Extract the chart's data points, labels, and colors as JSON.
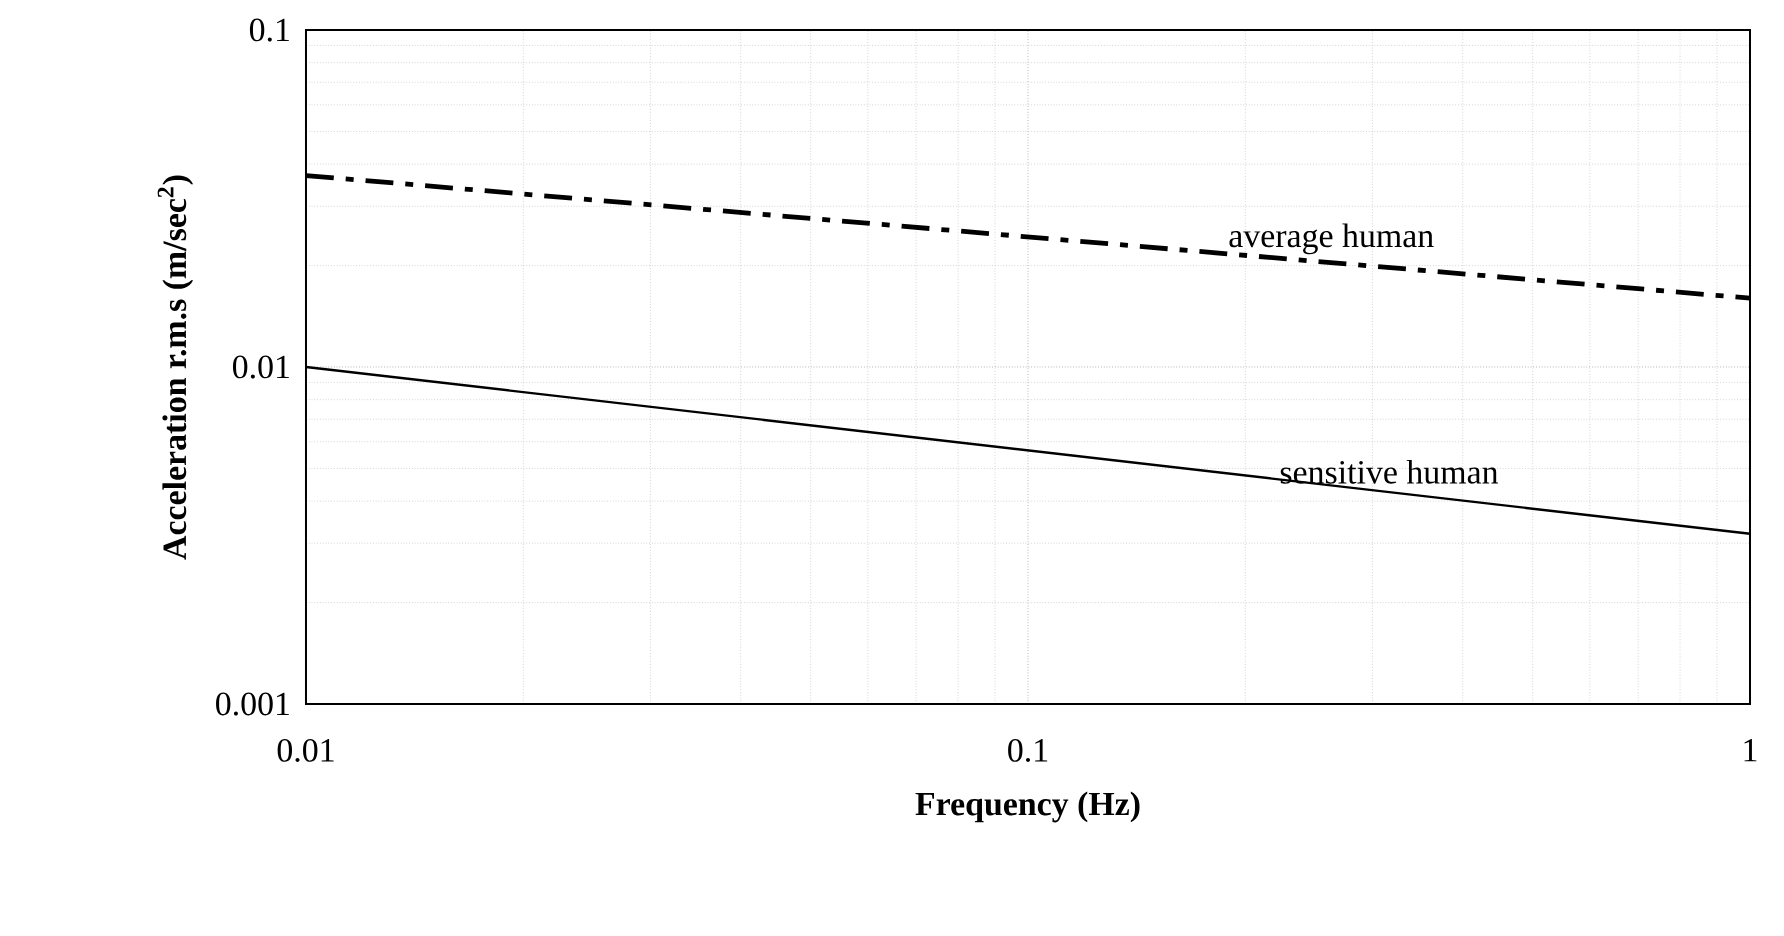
{
  "chart_data": {
    "type": "line",
    "xlabel": "Frequency (Hz)",
    "ylabel": "Acceleration r.m.s (m/sec$^{2}$)",
    "x": [
      0.01,
      1
    ],
    "series": [
      {
        "name": "average human",
        "color": "#000000",
        "line_style": "dashed",
        "values": [
          0.037,
          0.016
        ]
      },
      {
        "name": "sensitive human",
        "color": "#000000",
        "line_style": "solid",
        "values": [
          0.01,
          0.0032
        ]
      }
    ],
    "log": "xy",
    "xlim": [
      0.01,
      1
    ],
    "ylim": [
      0.001,
      0.1
    ],
    "xticks": [
      0.01,
      0.1,
      1
    ],
    "yticks": [
      0.001,
      0.01,
      0.1
    ],
    "grid": true,
    "legend": false,
    "marker": "none"
  }
}
